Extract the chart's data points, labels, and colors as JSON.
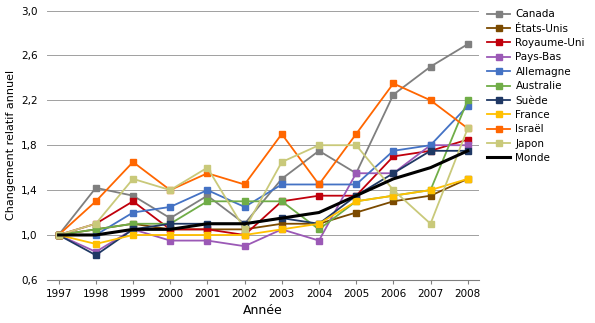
{
  "years": [
    1997,
    1998,
    1999,
    2000,
    2001,
    2002,
    2003,
    2004,
    2005,
    2006,
    2007,
    2008
  ],
  "series": {
    "Canada": {
      "values": [
        1.0,
        1.42,
        1.35,
        1.15,
        1.35,
        1.1,
        1.5,
        1.75,
        1.55,
        2.25,
        2.5,
        2.7
      ],
      "color": "#7F7F7F",
      "marker": "s",
      "linewidth": 1.3,
      "linestyle": "-"
    },
    "États-Unis": {
      "values": [
        1.0,
        1.05,
        1.1,
        1.05,
        1.05,
        1.05,
        1.1,
        1.1,
        1.2,
        1.3,
        1.35,
        1.5
      ],
      "color": "#7B4A00",
      "marker": "s",
      "linewidth": 1.3,
      "linestyle": "-"
    },
    "Royaume-Uni": {
      "values": [
        1.0,
        1.1,
        1.3,
        1.05,
        1.05,
        1.0,
        1.3,
        1.35,
        1.35,
        1.7,
        1.75,
        1.85
      ],
      "color": "#C0000C",
      "marker": "s",
      "linewidth": 1.3,
      "linestyle": "-"
    },
    "Pays-Bas": {
      "values": [
        1.0,
        0.85,
        1.05,
        0.95,
        0.95,
        0.9,
        1.05,
        0.95,
        1.55,
        1.55,
        1.8,
        1.8
      ],
      "color": "#9B59B6",
      "marker": "s",
      "linewidth": 1.3,
      "linestyle": "-"
    },
    "Allemagne": {
      "values": [
        1.0,
        1.0,
        1.2,
        1.25,
        1.4,
        1.25,
        1.45,
        1.45,
        1.45,
        1.75,
        1.8,
        2.15
      ],
      "color": "#4472C4",
      "marker": "s",
      "linewidth": 1.3,
      "linestyle": "-"
    },
    "Australie": {
      "values": [
        1.0,
        1.05,
        1.1,
        1.1,
        1.3,
        1.3,
        1.3,
        1.05,
        1.3,
        1.35,
        1.4,
        2.2
      ],
      "color": "#70AD47",
      "marker": "s",
      "linewidth": 1.3,
      "linestyle": "-"
    },
    "Suède": {
      "values": [
        1.0,
        0.82,
        1.05,
        1.1,
        1.1,
        1.1,
        1.15,
        1.1,
        1.35,
        1.55,
        1.75,
        1.75
      ],
      "color": "#1F3864",
      "marker": "s",
      "linewidth": 1.3,
      "linestyle": "-"
    },
    "France": {
      "values": [
        1.0,
        0.92,
        1.0,
        1.0,
        1.0,
        1.0,
        1.05,
        1.1,
        1.3,
        1.35,
        1.4,
        1.5
      ],
      "color": "#FFC000",
      "marker": "s",
      "linewidth": 1.3,
      "linestyle": "-"
    },
    "Israël": {
      "values": [
        1.0,
        1.3,
        1.65,
        1.4,
        1.55,
        1.45,
        1.9,
        1.45,
        1.9,
        2.35,
        2.2,
        1.95
      ],
      "color": "#FF6600",
      "marker": "s",
      "linewidth": 1.3,
      "linestyle": "-"
    },
    "Japon": {
      "values": [
        1.0,
        1.1,
        1.5,
        1.4,
        1.6,
        1.05,
        1.65,
        1.8,
        1.8,
        1.4,
        1.1,
        1.95
      ],
      "color": "#C9C97A",
      "marker": "s",
      "linewidth": 1.3,
      "linestyle": "-"
    },
    "Monde": {
      "values": [
        1.0,
        1.0,
        1.05,
        1.05,
        1.1,
        1.1,
        1.15,
        1.2,
        1.35,
        1.5,
        1.6,
        1.75
      ],
      "color": "#000000",
      "marker": "None",
      "linewidth": 2.2,
      "linestyle": "-"
    }
  },
  "xlabel": "Année",
  "ylabel": "Changement relatif annuel",
  "ylim": [
    0.6,
    3.0
  ],
  "yticks": [
    0.6,
    1.0,
    1.4,
    1.8,
    2.2,
    2.6,
    3.0
  ],
  "ytick_labels": [
    "0,6",
    "1,0",
    "1,4",
    "1,8",
    "2,2",
    "2,6",
    "3,0"
  ],
  "background_color": "#ffffff",
  "grid_color": "#A0A0A0"
}
